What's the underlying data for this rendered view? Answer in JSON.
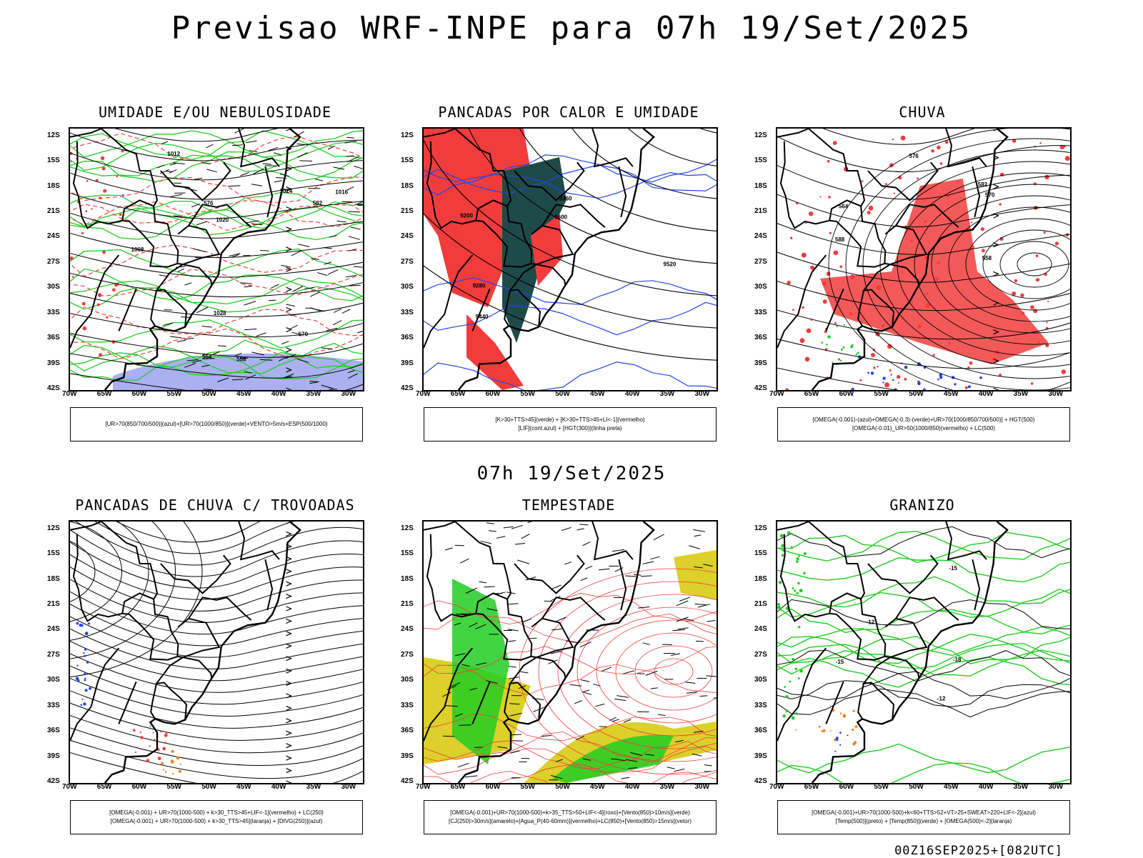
{
  "header": {
    "title": "Previsao WRF-INPE  para 07h 19/Set/2025",
    "mid_title": "07h 19/Set/2025",
    "footer": "00Z16SEP2025+[082UTC]"
  },
  "axes": {
    "lat_labels": [
      "12S",
      "15S",
      "18S",
      "21S",
      "24S",
      "27S",
      "30S",
      "33S",
      "36S",
      "39S",
      "42S"
    ],
    "lon_labels": [
      "70W",
      "65W",
      "60W",
      "55W",
      "50W",
      "45W",
      "40W",
      "35W",
      "30W"
    ]
  },
  "panels": [
    {
      "title": "UMIDADE E/OU NEBULOSIDADE",
      "legend": [
        "[UR>70(850/700/500)](azul)+[UR>70(1000/850)](verde)+VENTO>5m/s+ESP(500/1000)"
      ],
      "contour_labels": [
        "1008",
        "1012",
        "1020",
        "1024",
        "1028",
        "1016",
        "576",
        "582",
        "564",
        "558",
        "570"
      ]
    },
    {
      "title": "PANCADAS POR CALOR E UMIDADE",
      "legend": [
        "[K>30+TTS>45](verde) + [K>30+TTS>45+LI<-1](vermelho)",
        "[LIF](cont.azul) + [HGT(300)](linha preta)"
      ],
      "contour_labels": [
        "9600",
        "9520",
        "9440",
        "9360",
        "9280",
        "9200"
      ]
    },
    {
      "title": "CHUVA",
      "legend": [
        "[OMEGA(-0.001)-(azul)+OMEGA(-0.3)-(verde)+UR>70(1000/850/700/500)] + HGT(500)",
        "[OMEGA(-0.01)_UR>50(1000/850)(vermelho) + LC(500)"
      ],
      "contour_labels": [
        "582",
        "576",
        "570",
        "564",
        "558",
        "588"
      ]
    },
    {
      "title": "PANCADAS DE CHUVA C/ TROVOADAS",
      "legend": [
        "[OMEGA(-0.001) + UR>70(1000-500) + k>30_TTS>45+LIF<-1](vermelho) + LC(250)",
        "[OMEGA(-0.001) + UR>70(1000-500) + k>30_TTS>45](laranja) + [DIVG(250)](azul)"
      ],
      "contour_labels": []
    },
    {
      "title": "TEMPESTADE",
      "legend": [
        "[OMEGA(-0.001)+UR>70(1000-500)+k>35_TTS>50+LIF<-4](roxo)+[Vento(850)>10m/s](verde)",
        "[CJ(250)>30m/s](amarelo)+[Agua_P(40-60mm)](vermelho)+LC(850)+[Vento(850)>15m/s](vetor)"
      ],
      "contour_labels": []
    },
    {
      "title": "GRANIZO",
      "legend": [
        "[OMEGA(-0.001)+UR>70(1000-500)+k<60+TTS>52+VT>25+SWEAT>220+LIF<-2](azul)",
        "[Temp(500)](preto) + [Temp(850)](verde) + [OMEGA(500)<-2](laranja)"
      ],
      "contour_labels": [
        "-12",
        "-15",
        "-18",
        "-12",
        "-15"
      ]
    }
  ],
  "colors": {
    "red_fill": "#f23c3c",
    "dark_teal": "#1f4a4a",
    "green": "#22cc22",
    "blue": "#2244ee",
    "lavender": "#aab0f0",
    "yellow": "#dcd02a",
    "orange": "#f08020"
  }
}
